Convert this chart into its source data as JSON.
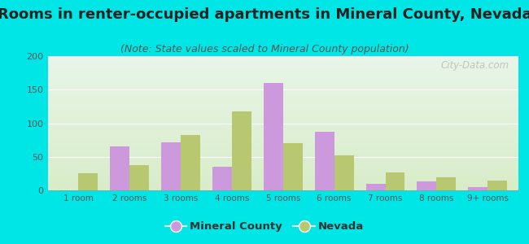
{
  "title": "Rooms in renter-occupied apartments in Mineral County, Nevada",
  "subtitle": "(Note: State values scaled to Mineral County population)",
  "categories": [
    "1 room",
    "2 rooms",
    "3 rooms",
    "4 rooms",
    "5 rooms",
    "6 rooms",
    "7 rooms",
    "8 rooms",
    "9+ rooms"
  ],
  "mineral_county": [
    0,
    65,
    72,
    35,
    160,
    87,
    10,
    13,
    5
  ],
  "nevada": [
    25,
    37,
    83,
    118,
    70,
    52,
    27,
    19,
    14
  ],
  "mineral_color": "#cc99dd",
  "nevada_color": "#b8c870",
  "background_color": "#00e5e5",
  "ylim": [
    0,
    200
  ],
  "yticks": [
    0,
    50,
    100,
    150,
    200
  ],
  "bar_width": 0.38,
  "title_fontsize": 13,
  "subtitle_fontsize": 9,
  "legend_labels": [
    "Mineral County",
    "Nevada"
  ],
  "watermark": "City-Data.com"
}
